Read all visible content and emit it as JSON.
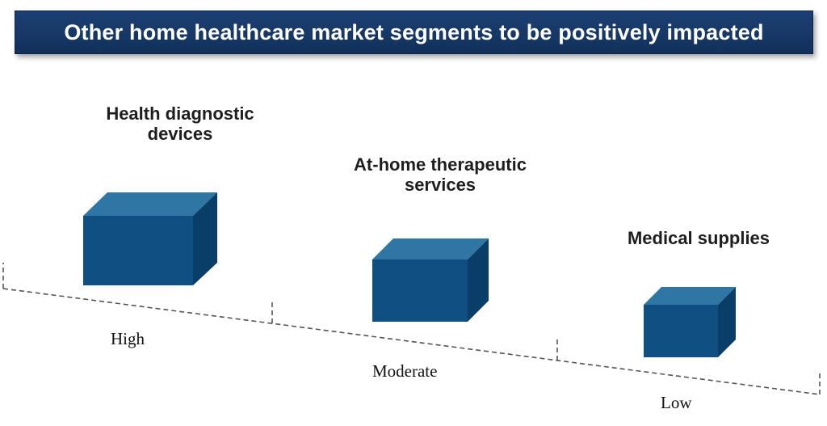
{
  "title": "Other home healthcare market segments to be positively impacted",
  "segments": [
    {
      "label_line1": "Health diagnostic",
      "label_line2": "devices",
      "impact": "High"
    },
    {
      "label_line1": "At-home therapeutic",
      "label_line2": "services",
      "impact": "Moderate"
    },
    {
      "label_line1": "Medical supplies",
      "label_line2": "",
      "impact": "Low"
    }
  ],
  "colors": {
    "banner": "#173866",
    "box_front": "#0f4f82",
    "box_top": "#2f76a4",
    "box_side": "#083e68",
    "axis": "#555555"
  }
}
